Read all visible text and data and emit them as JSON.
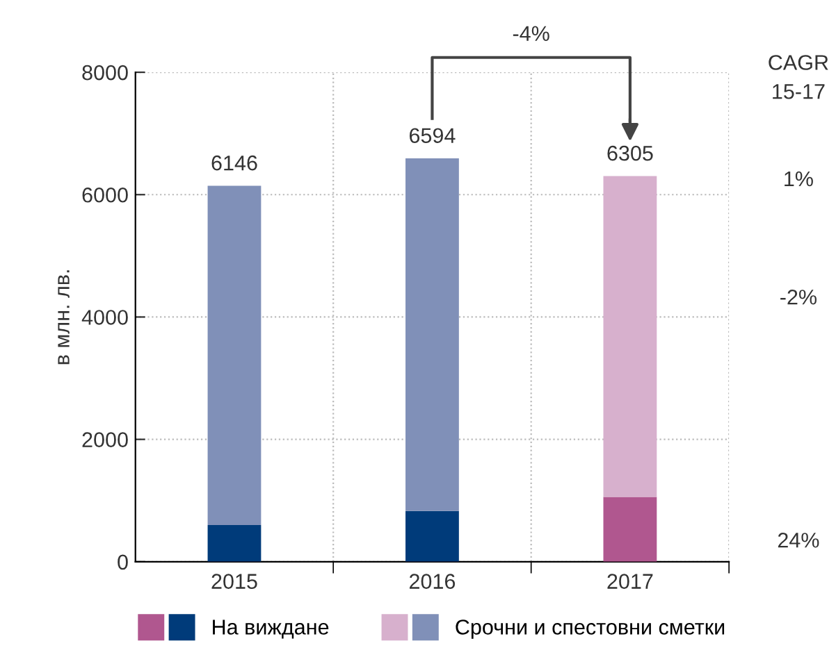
{
  "chart_data": {
    "type": "bar",
    "stacked": true,
    "ylabel": "в млн. лв.",
    "categories": [
      "2015",
      "2016",
      "2017"
    ],
    "series": [
      {
        "name": "На виждане",
        "colors": [
          "#003b7a",
          "#003b7a",
          "#b0578f"
        ],
        "values": [
          600,
          830,
          1060
        ]
      },
      {
        "name": "Срочни и спестовни сметки",
        "colors": [
          "#8090b8",
          "#8090b8",
          "#d7b0cd"
        ],
        "values": [
          5546,
          5764,
          5245
        ]
      }
    ],
    "totals": [
      "6146",
      "6594",
      "6305"
    ],
    "ylim": [
      0,
      8000
    ],
    "yticks": [
      0,
      2000,
      4000,
      6000,
      8000
    ],
    "grid": true,
    "legend": "bottom",
    "annotations": [
      "-4%",
      "CAGR\n15-17",
      "1%",
      "-2%",
      "24%"
    ]
  }
}
